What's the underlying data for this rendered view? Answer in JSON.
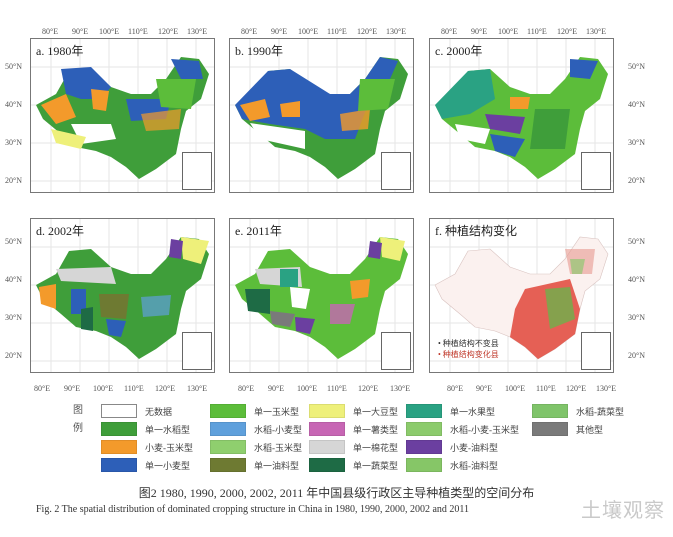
{
  "figure": {
    "panels": [
      {
        "id": "a",
        "title": "a. 1980年"
      },
      {
        "id": "b",
        "title": "b. 1990年"
      },
      {
        "id": "c",
        "title": "c. 2000年"
      },
      {
        "id": "d",
        "title": "d. 2002年"
      },
      {
        "id": "e",
        "title": "e. 2011年"
      },
      {
        "id": "f",
        "title": "f. 种植结构变化"
      }
    ],
    "lon_ticks": [
      "80°E",
      "90°E",
      "100°E",
      "110°E",
      "120°E",
      "130°E"
    ],
    "lat_ticks": [
      "50°N",
      "40°N",
      "30°N",
      "20°N"
    ],
    "panel_f_legend": [
      "• 种植结构不变县",
      "• 种植结构变化县"
    ],
    "legend": {
      "title": "图例",
      "items": [
        {
          "label": "无数据",
          "color": "#ffffff"
        },
        {
          "label": "单一水稻型",
          "color": "#3f9e3a"
        },
        {
          "label": "小麦-玉米型",
          "color": "#f39a2b"
        },
        {
          "label": "单一小麦型",
          "color": "#2d5fb8"
        },
        {
          "label": "单一玉米型",
          "color": "#5cbd3a"
        },
        {
          "label": "水稻-小麦型",
          "color": "#5fa0dc"
        },
        {
          "label": "水稻-玉米型",
          "color": "#8fcf6e"
        },
        {
          "label": "单一油料型",
          "color": "#6e7a32"
        },
        {
          "label": "单一大豆型",
          "color": "#eef07a"
        },
        {
          "label": "单一薯类型",
          "color": "#c766b4"
        },
        {
          "label": "单一棉花型",
          "color": "#d6d6d6"
        },
        {
          "label": "单一蔬菜型",
          "color": "#1e6b45"
        },
        {
          "label": "单一水果型",
          "color": "#2aa283"
        },
        {
          "label": "水稻-小麦-玉米型",
          "color": "#8ccb6c"
        },
        {
          "label": "小麦-油料型",
          "color": "#6b3fa0"
        },
        {
          "label": "水稻-油料型",
          "color": "#86c667"
        },
        {
          "label": "水稻-蔬菜型",
          "color": "#7fc46a"
        },
        {
          "label": "其他型",
          "color": "#7a7a7a"
        }
      ]
    },
    "caption_cn": "图2   1980, 1990, 2000, 2002, 2011 年中国县级行政区主导种植类型的空间分布",
    "caption_en": "Fig. 2   The spatial distribution of dominated cropping structure in China in 1980, 1990, 2000, 2002 and 2011",
    "watermark": "土壤观察"
  }
}
